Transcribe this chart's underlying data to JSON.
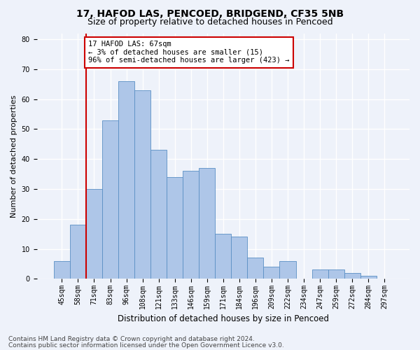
{
  "title1": "17, HAFOD LAS, PENCOED, BRIDGEND, CF35 5NB",
  "title2": "Size of property relative to detached houses in Pencoed",
  "xlabel": "Distribution of detached houses by size in Pencoed",
  "ylabel": "Number of detached properties",
  "footer1": "Contains HM Land Registry data © Crown copyright and database right 2024.",
  "footer2": "Contains public sector information licensed under the Open Government Licence v3.0.",
  "categories": [
    "45sqm",
    "58sqm",
    "71sqm",
    "83sqm",
    "96sqm",
    "108sqm",
    "121sqm",
    "133sqm",
    "146sqm",
    "159sqm",
    "171sqm",
    "184sqm",
    "196sqm",
    "209sqm",
    "222sqm",
    "234sqm",
    "247sqm",
    "259sqm",
    "272sqm",
    "284sqm",
    "297sqm"
  ],
  "values": [
    6,
    18,
    30,
    53,
    66,
    63,
    43,
    34,
    36,
    37,
    15,
    14,
    7,
    4,
    6,
    0,
    3,
    3,
    2,
    1,
    0
  ],
  "bar_color": "#aec6e8",
  "bar_edge_color": "#5a8fc4",
  "vline_color": "#cc0000",
  "annotation_text": "17 HAFOD LAS: 67sqm\n← 3% of detached houses are smaller (15)\n96% of semi-detached houses are larger (423) →",
  "annotation_box_color": "#ffffff",
  "annotation_box_edge": "#cc0000",
  "ylim": [
    0,
    82
  ],
  "yticks": [
    0,
    10,
    20,
    30,
    40,
    50,
    60,
    70,
    80
  ],
  "background_color": "#eef2fa",
  "grid_color": "#ffffff",
  "title1_fontsize": 10,
  "title2_fontsize": 9,
  "xlabel_fontsize": 8.5,
  "ylabel_fontsize": 8,
  "tick_fontsize": 7,
  "footer_fontsize": 6.5,
  "annot_fontsize": 7.5
}
